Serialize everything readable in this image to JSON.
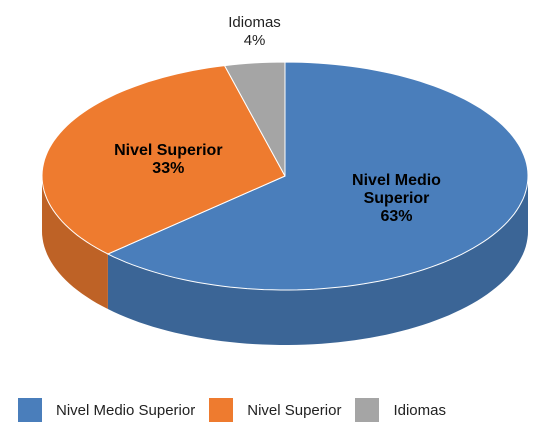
{
  "chart_data": {
    "type": "pie3d",
    "categories": [
      "Nivel Medio Superior",
      "Nivel Superior",
      "Idiomas"
    ],
    "values": [
      63,
      33,
      4
    ],
    "value_labels": [
      "63%",
      "33%",
      "4%"
    ],
    "colors": [
      "#4a7ebb",
      "#ee7b2f",
      "#a5a5a5"
    ],
    "legend": "bottom"
  }
}
